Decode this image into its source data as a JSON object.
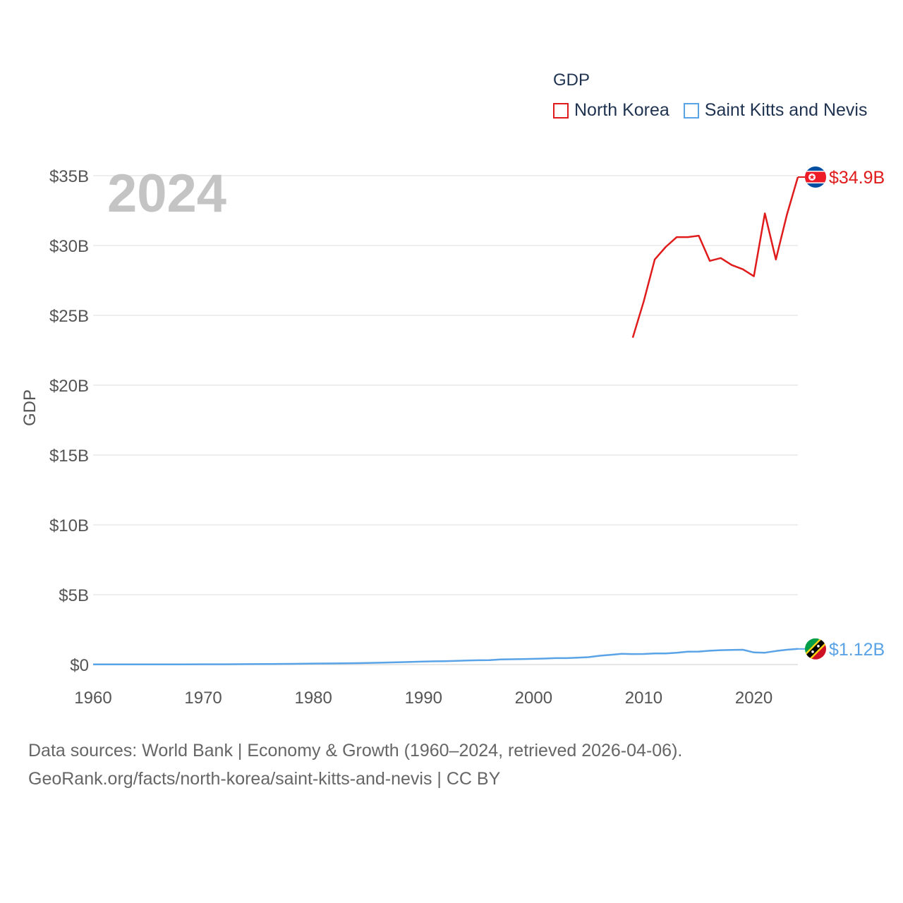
{
  "chart_data": {
    "type": "line",
    "title": "",
    "legend_title": "GDP",
    "ylabel": "GDP",
    "xlabel": "",
    "xlim": [
      1960,
      2024
    ],
    "ylim": [
      0,
      35
    ],
    "y_unit": "billions USD",
    "x_ticks": [
      1960,
      1970,
      1980,
      1990,
      2000,
      2010,
      2020
    ],
    "x_tick_labels": [
      "1960",
      "1970",
      "1980",
      "1990",
      "2000",
      "2010",
      "2020"
    ],
    "y_ticks": [
      0,
      5,
      10,
      15,
      20,
      25,
      30,
      35
    ],
    "y_tick_labels": [
      "$0",
      "$5B",
      "$10B",
      "$15B",
      "$20B",
      "$25B",
      "$30B",
      "$35B"
    ],
    "grid": true,
    "legend_position": "top-right",
    "year_watermark": "2024",
    "series": [
      {
        "name": "North Korea",
        "color": "#e01b1b",
        "end_label": "$34.9B",
        "flag": "north-korea-flag-icon",
        "x": [
          2009,
          2010,
          2011,
          2012,
          2013,
          2014,
          2015,
          2016,
          2017,
          2018,
          2019,
          2020,
          2021,
          2022,
          2023,
          2024
        ],
        "values": [
          23.4,
          26.0,
          29.0,
          29.9,
          30.6,
          30.6,
          30.7,
          28.9,
          29.1,
          28.6,
          28.3,
          27.8,
          32.3,
          29.0,
          32.2,
          34.9
        ]
      },
      {
        "name": "Saint Kitts and Nevis",
        "color": "#5aa3e6",
        "end_label": "$1.12B",
        "flag": "saint-kitts-and-nevis-flag-icon",
        "x": [
          1960,
          1962,
          1964,
          1966,
          1968,
          1970,
          1972,
          1974,
          1976,
          1978,
          1980,
          1982,
          1984,
          1986,
          1988,
          1990,
          1991,
          1992,
          1993,
          1994,
          1995,
          1996,
          1997,
          1998,
          1999,
          2000,
          2001,
          2002,
          2003,
          2004,
          2005,
          2006,
          2007,
          2008,
          2009,
          2010,
          2011,
          2012,
          2013,
          2014,
          2015,
          2016,
          2017,
          2018,
          2019,
          2020,
          2021,
          2022,
          2023,
          2024
        ],
        "values": [
          0.01,
          0.01,
          0.01,
          0.01,
          0.01,
          0.02,
          0.02,
          0.03,
          0.04,
          0.05,
          0.07,
          0.08,
          0.1,
          0.13,
          0.17,
          0.21,
          0.23,
          0.24,
          0.27,
          0.29,
          0.31,
          0.32,
          0.37,
          0.38,
          0.39,
          0.41,
          0.43,
          0.46,
          0.46,
          0.49,
          0.53,
          0.63,
          0.69,
          0.77,
          0.75,
          0.76,
          0.8,
          0.8,
          0.85,
          0.92,
          0.93,
          0.99,
          1.03,
          1.05,
          1.06,
          0.87,
          0.85,
          0.97,
          1.06,
          1.12
        ]
      }
    ]
  },
  "footer": {
    "line1": "Data sources: World Bank | Economy & Growth (1960–2024, retrieved 2026-04-06).",
    "line2": "GeoRank.org/facts/north-korea/saint-kitts-and-nevis | CC BY"
  }
}
